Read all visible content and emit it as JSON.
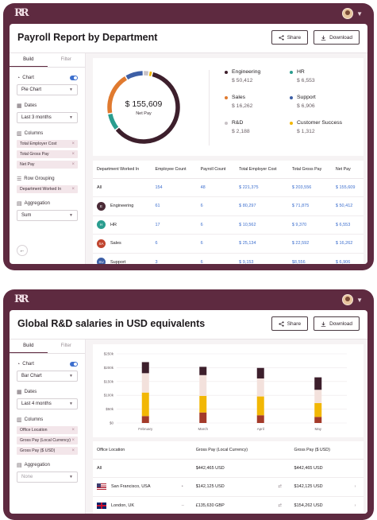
{
  "screen1": {
    "title": "Payroll Report by Department",
    "share_label": "Share",
    "download_label": "Download",
    "tabs": [
      "Build",
      "Filter"
    ],
    "chart_label": "Chart",
    "chart_type": "Pie Chart",
    "dates_label": "Dates",
    "dates_value": "Last 3 months",
    "columns_label": "Columns",
    "columns": [
      "Total Employer Cost",
      "Total Gross Pay",
      "Net Pay"
    ],
    "row_grouping_label": "Row Grouping",
    "row_grouping": [
      "Department Worked In"
    ],
    "aggregation_label": "Aggregation",
    "aggregation_value": "Sum",
    "donut_value": "$ 155,609",
    "donut_label": "Net Pay",
    "legend": [
      {
        "name": "Engineering",
        "value": "$ 50,412",
        "color": "#3d1f2c"
      },
      {
        "name": "HR",
        "value": "$ 6,553",
        "color": "#2a9d8f"
      },
      {
        "name": "Sales",
        "value": "$ 16,262",
        "color": "#e07a2f"
      },
      {
        "name": "Support",
        "value": "$ 6,906",
        "color": "#3d5fa6"
      },
      {
        "name": "R&D",
        "value": "$ 2,188",
        "color": "#c8c2c6"
      },
      {
        "name": "Customer Success",
        "value": "$ 1,312",
        "color": "#f2b705"
      }
    ],
    "table": {
      "headers": [
        "Department Worked In",
        "Employee Count",
        "Payroll Count",
        "Total Employer Cost",
        "Total Gross Pay",
        "Net Pay"
      ],
      "rows": [
        {
          "badge": "",
          "badge_color": "",
          "name": "All",
          "cells": [
            "154",
            "48",
            "$ 221,375",
            "$ 203,556",
            "$ 155,609"
          ]
        },
        {
          "badge": "E",
          "badge_color": "#4a2a36",
          "name": "Engineering",
          "cells": [
            "61",
            "6",
            "$ 80,297",
            "$ 71,875",
            "$ 50,412"
          ]
        },
        {
          "badge": "H",
          "badge_color": "#2a9d8f",
          "name": "HR",
          "cells": [
            "17",
            "6",
            "$ 10,562",
            "$ 9,370",
            "$ 6,553"
          ]
        },
        {
          "badge": "SA",
          "badge_color": "#c0442e",
          "name": "Sales",
          "cells": [
            "6",
            "6",
            "$ 25,134",
            "$ 22,592",
            "$ 16,262"
          ]
        },
        {
          "badge": "SU",
          "badge_color": "#3d5fa6",
          "name": "Support",
          "cells": [
            "3",
            "6",
            "$ 9,153",
            "$8,556",
            "$ 6,906"
          ]
        }
      ]
    }
  },
  "screen2": {
    "title": "Global R&D salaries in USD equivalents",
    "share_label": "Share",
    "download_label": "Download",
    "tabs": [
      "Build",
      "Filter"
    ],
    "chart_label": "Chart",
    "chart_type": "Bar Chart",
    "dates_label": "Dates",
    "dates_value": "Last 4 months",
    "columns_label": "Columns",
    "columns": [
      "Office Location",
      "Gross Pay (Local Currency)",
      "Gross Pay ($ USD)"
    ],
    "aggregation_label": "Aggregation",
    "aggregation_value": "None",
    "table": {
      "headers": [
        "Office Location",
        "",
        "Gross Pay (Local Currency)",
        "",
        "Gross Pay ($ USD)",
        ""
      ],
      "rows": [
        {
          "flag": "",
          "name": "All",
          "mark": "",
          "local": "$442,465 USD",
          "swap": "",
          "usd": "$442,465 USD",
          "go": ""
        },
        {
          "flag": "us",
          "name": "San Francisco, USA",
          "mark": "•",
          "local": "$142,125 USD",
          "swap": "⇄",
          "usd": "$142,125 USD",
          "go": "›"
        },
        {
          "flag": "uk",
          "name": "London, UK",
          "mark": "–",
          "local": "£135,630 GBP",
          "swap": "⇄",
          "usd": "$154,262 USD",
          "go": "›"
        }
      ]
    }
  },
  "chart_data": {
    "type": "bar",
    "stacked": true,
    "categories": [
      "February",
      "March",
      "April",
      "May"
    ],
    "yticks": [
      "$0",
      "$50k",
      "$100k",
      "$150k",
      "$200k",
      "$250k"
    ],
    "ylim": [
      0,
      250000
    ],
    "series": [
      {
        "color": "#a33a2a",
        "values": [
          25000,
          38000,
          28000,
          22000
        ]
      },
      {
        "color": "#f2b705",
        "values": [
          85000,
          60000,
          68000,
          50000
        ]
      },
      {
        "color": "#f3e1dc",
        "values": [
          70000,
          75000,
          65000,
          48000
        ]
      },
      {
        "color": "#3d1f2c",
        "values": [
          40000,
          30000,
          38000,
          45000
        ]
      }
    ],
    "grid": true
  }
}
